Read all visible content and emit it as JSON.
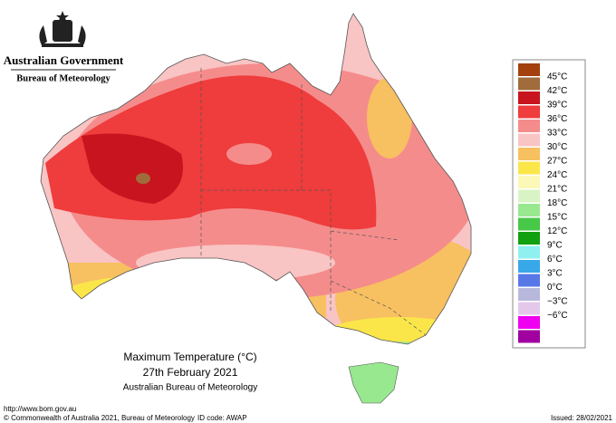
{
  "header": {
    "government": "Australian Government",
    "agency": "Bureau of Meteorology"
  },
  "legend": {
    "colors": [
      "#a4400e",
      "#a06c3c",
      "#c8141e",
      "#ef3c3c",
      "#f58c8c",
      "#f9c4c4",
      "#f7c060",
      "#fbe64a",
      "#fbf8b8",
      "#d8f4c4",
      "#98e890",
      "#48c848",
      "#10a010",
      "#90f0f0",
      "#38a8e8",
      "#5878e8",
      "#b8b8dc",
      "#e4c8ec",
      "#f000f0",
      "#a000a0"
    ],
    "labels": [
      "45°C",
      "42°C",
      "39°C",
      "36°C",
      "33°C",
      "30°C",
      "27°C",
      "24°C",
      "21°C",
      "18°C",
      "15°C",
      "12°C",
      "9°C",
      "6°C",
      "3°C",
      "0°C",
      "−3°C",
      "−6°C"
    ]
  },
  "caption": {
    "title": "Maximum Temperature (°C)",
    "date": "27th February 2021",
    "source": "Australian Bureau of Meteorology"
  },
  "footer": {
    "url": "http://www.bom.gov.au",
    "copyright": "© Commonwealth of Australia 2021, Bureau of Meteorology",
    "id_code": "ID code: AWAP",
    "issued": "Issued: 28/02/2021"
  }
}
